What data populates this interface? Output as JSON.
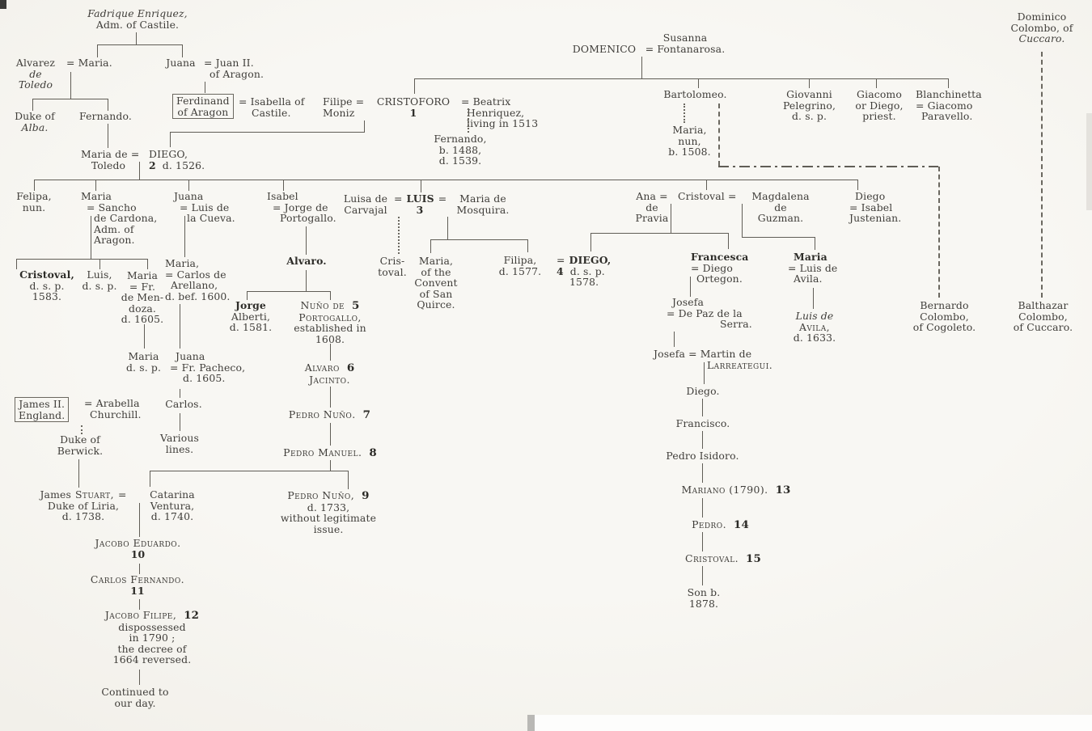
{
  "chart_title": "Genealogy of the Colombo (Columbus) family",
  "colors": {
    "paper": "#f6f5f1",
    "ink": "#3f3d39",
    "line": "#605d56"
  },
  "persons": {
    "fadrique": [
      [
        {
          "t": "Fadrique Enriquez,",
          "s": "i"
        }
      ],
      [
        {
          "t": "Adm. of Castile."
        }
      ]
    ],
    "alvarez": [
      [
        {
          "t": "Alvarez"
        }
      ],
      [
        {
          "t": "de",
          "s": "i"
        }
      ],
      [
        {
          "t": "Toledo",
          "s": "i"
        }
      ]
    ],
    "maria_w_alvarez": [
      [
        {
          "t": "= Maria."
        }
      ]
    ],
    "juana_w_juan": [
      [
        {
          "t": "Juana"
        }
      ]
    ],
    "juan2": [
      [
        {
          "t": "= Juan II."
        }
      ],
      [
        {
          "t": "of Aragon.",
          "s": "ind1"
        }
      ]
    ],
    "duke_alba": [
      [
        {
          "t": "Duke of"
        }
      ],
      [
        {
          "t": "Alba.",
          "s": "i"
        }
      ]
    ],
    "fernando_toledo": [
      [
        {
          "t": "Fernando."
        }
      ]
    ],
    "ferdinand": [
      [
        {
          "t": "Ferdinand"
        }
      ],
      [
        {
          "t": "of Aragon"
        }
      ]
    ],
    "isabella": [
      [
        {
          "t": "= Isabella of"
        }
      ],
      [
        {
          "t": "Castile.",
          "s": "ind2"
        }
      ]
    ],
    "filipe_moniz": [
      [
        {
          "t": "Filipe ="
        }
      ],
      [
        {
          "t": "Moniz"
        }
      ]
    ],
    "cristoforo": [
      [
        {
          "t": "CRISTOFORO"
        }
      ],
      [
        {
          "t": "1",
          "s": "b"
        }
      ]
    ],
    "beatrix": [
      [
        {
          "t": "= Beatrix"
        }
      ],
      [
        {
          "t": "Henriquez,",
          "s": "ind1"
        }
      ],
      [
        {
          "t": "living in 1513",
          "s": "ind1"
        }
      ]
    ],
    "domenico": [
      [
        {
          "t": "DOMENICO"
        }
      ]
    ],
    "susanna": [
      [
        {
          "t": "Susanna"
        }
      ],
      [
        {
          "t": "= Fontanarosa."
        }
      ]
    ],
    "dominico_cuccaro": [
      [
        {
          "t": "Dominico"
        }
      ],
      [
        {
          "t": "Colombo, of"
        }
      ],
      [
        {
          "t": "Cuccaro.",
          "s": "i"
        }
      ]
    ],
    "fernando_col": [
      [
        {
          "t": "Fernando,"
        }
      ],
      [
        {
          "t": "b. 1488,"
        }
      ],
      [
        {
          "t": "d. 1539."
        }
      ]
    ],
    "bartolomeo": [
      [
        {
          "t": "Bartolomeo."
        }
      ]
    ],
    "maria_nun": [
      [
        {
          "t": "Maria,"
        }
      ],
      [
        {
          "t": "nun,"
        }
      ],
      [
        {
          "t": "b. 1508."
        }
      ]
    ],
    "giovanni": [
      [
        {
          "t": "Giovanni"
        }
      ],
      [
        {
          "t": "Pelegrino,"
        }
      ],
      [
        {
          "t": "d. s. p."
        }
      ]
    ],
    "giacomo": [
      [
        {
          "t": "Giacomo"
        }
      ],
      [
        {
          "t": "or Diego,"
        }
      ],
      [
        {
          "t": "priest."
        }
      ]
    ],
    "blanchinetta": [
      [
        {
          "t": "Blanchinetta"
        }
      ],
      [
        {
          "t": "= Giacomo"
        }
      ],
      [
        {
          "t": "Paravello.",
          "s": "ind1"
        }
      ]
    ],
    "maria_toledo": [
      [
        {
          "t": "Maria de ="
        }
      ],
      [
        {
          "t": "Toledo"
        }
      ]
    ],
    "diego2": [
      [
        {
          "t": "DIEGO,"
        }
      ],
      [
        {
          "t": "2",
          "s": "b"
        },
        {
          "t": "d. 1526.",
          "s": "gap"
        }
      ]
    ],
    "felipa": [
      [
        {
          "t": "Felipa,"
        }
      ],
      [
        {
          "t": "nun."
        }
      ]
    ],
    "maria_sancho": [
      [
        {
          "t": "Maria"
        }
      ],
      [
        {
          "t": "= Sancho",
          "s": "ind1"
        }
      ],
      [
        {
          "t": "de Cardona,",
          "s": "ind2"
        }
      ],
      [
        {
          "t": "Adm. of",
          "s": "ind2"
        }
      ],
      [
        {
          "t": "Aragon.",
          "s": "ind2"
        }
      ]
    ],
    "juana_cueva": [
      [
        {
          "t": "Juana"
        }
      ],
      [
        {
          "t": "= Luis de",
          "s": "ind1"
        }
      ],
      [
        {
          "t": "la Cueva.",
          "s": "ind2"
        }
      ]
    ],
    "isabel_jorge": [
      [
        {
          "t": "Isabel"
        }
      ],
      [
        {
          "t": "= Jorge de",
          "s": "ind1"
        }
      ],
      [
        {
          "t": "Portogallo.",
          "s": "ind2"
        }
      ]
    ],
    "luisa_carvajal": [
      [
        {
          "t": "Luisa de"
        }
      ],
      [
        {
          "t": "Carvajal"
        }
      ]
    ],
    "luis3": [
      [
        {
          "t": "="
        },
        {
          "t": "LUIS",
          "s": "b gapS"
        },
        {
          "t": "=",
          "s": "gapS"
        }
      ],
      [
        {
          "t": "3",
          "s": "b"
        }
      ]
    ],
    "maria_mosquira": [
      [
        {
          "t": "Maria de"
        }
      ],
      [
        {
          "t": "Mosquira."
        }
      ]
    ],
    "ana_pravia": [
      [
        {
          "t": "Ana ="
        }
      ],
      [
        {
          "t": "de"
        }
      ],
      [
        {
          "t": "Pravia"
        }
      ]
    ],
    "cristoval2": [
      [
        {
          "t": "Cristoval ="
        }
      ]
    ],
    "magdalena": [
      [
        {
          "t": "Magdalena"
        }
      ],
      [
        {
          "t": "de"
        }
      ],
      [
        {
          "t": "Guzman."
        }
      ]
    ],
    "diego_justenian": [
      [
        {
          "t": "Diego",
          "s": "ind1"
        }
      ],
      [
        {
          "t": "= Isabel"
        }
      ],
      [
        {
          "t": "Justenian."
        }
      ]
    ],
    "cristoval_dsp": [
      [
        {
          "t": "Cristoval,",
          "s": "b"
        }
      ],
      [
        {
          "t": "d. s. p."
        }
      ],
      [
        {
          "t": "1583."
        }
      ]
    ],
    "luis_dsp": [
      [
        {
          "t": "Luis,"
        }
      ],
      [
        {
          "t": "d. s. p."
        }
      ]
    ],
    "maria_mendoza": [
      [
        {
          "t": "Maria"
        }
      ],
      [
        {
          "t": "= Fr."
        }
      ],
      [
        {
          "t": "de Men-"
        }
      ],
      [
        {
          "t": "doza."
        }
      ],
      [
        {
          "t": "d. 1605."
        }
      ]
    ],
    "maria_arellano": [
      [
        {
          "t": "Maria,"
        }
      ],
      [
        {
          "t": "= Carlos de"
        }
      ],
      [
        {
          "t": "Arellano,",
          "s": "ind1"
        }
      ],
      [
        {
          "t": "d. bef. 1600."
        }
      ]
    ],
    "alvaro_b": [
      [
        {
          "t": "Alvaro.",
          "s": "b"
        }
      ]
    ],
    "jorge_alberti": [
      [
        {
          "t": "Jorge",
          "s": "b"
        }
      ],
      [
        {
          "t": "Alberti,"
        }
      ],
      [
        {
          "t": "d. 1581."
        }
      ]
    ],
    "nuno5": [
      [
        {
          "t": "Nuño de",
          "s": "sc"
        },
        {
          "t": "5",
          "s": "num"
        }
      ],
      [
        {
          "t": "Portogallo,",
          "s": "sc"
        }
      ],
      [
        {
          "t": "established in"
        }
      ],
      [
        {
          "t": "1608."
        }
      ]
    ],
    "cristoval_ill": [
      [
        {
          "t": "Cris-"
        }
      ],
      [
        {
          "t": "toval."
        }
      ]
    ],
    "maria_convent": [
      [
        {
          "t": "Maria,"
        }
      ],
      [
        {
          "t": "of the"
        }
      ],
      [
        {
          "t": "Convent"
        }
      ],
      [
        {
          "t": "of San"
        }
      ],
      [
        {
          "t": "Quirce."
        }
      ]
    ],
    "filipa_d": [
      [
        {
          "t": "Filipa,"
        }
      ],
      [
        {
          "t": "d. 1577."
        }
      ]
    ],
    "diego4": [
      [
        {
          "t": "="
        },
        {
          "t": "DIEGO,",
          "s": "b gapS"
        }
      ],
      [
        {
          "t": "4",
          "s": "b"
        },
        {
          "t": "d. s. p.",
          "s": "gap"
        }
      ],
      [
        {
          "t": "1578.",
          "s": "ind2"
        }
      ]
    ],
    "francesca": [
      [
        {
          "t": "Francesca",
          "s": "b"
        }
      ],
      [
        {
          "t": "= Diego"
        }
      ],
      [
        {
          "t": "Ortegon.",
          "s": "ind1"
        }
      ]
    ],
    "maria_avila": [
      [
        {
          "t": "Maria",
          "s": "b ind1"
        }
      ],
      [
        {
          "t": "= Luis de"
        }
      ],
      [
        {
          "t": "Avila.",
          "s": "ind1"
        }
      ]
    ],
    "luis_avila": [
      [
        {
          "t": "Luis de",
          "s": "i"
        }
      ],
      [
        {
          "t": "Avila,",
          "s": "sc"
        }
      ],
      [
        {
          "t": "d. 1633."
        }
      ]
    ],
    "josefa1": [
      [
        {
          "t": "Josefa",
          "s": "ind1"
        }
      ],
      [
        {
          "t": "= De Paz de la"
        }
      ],
      [
        {
          "t": "Serra.",
          "s": "ind3"
        }
      ]
    ],
    "josefa2": [
      [
        {
          "t": "Josefa = Martin de"
        }
      ],
      [
        {
          "t": "Larreategui.",
          "s": "sc ind3"
        }
      ]
    ],
    "diego_ch": [
      [
        {
          "t": "Diego."
        }
      ]
    ],
    "francisco": [
      [
        {
          "t": "Francisco."
        }
      ]
    ],
    "pedro_isidoro": [
      [
        {
          "t": "Pedro Isidoro."
        }
      ]
    ],
    "mariano13": [
      [
        {
          "t": "Mariano (1790).",
          "s": "sc"
        },
        {
          "t": "13",
          "s": "num"
        }
      ]
    ],
    "pedro14": [
      [
        {
          "t": "Pedro.",
          "s": "sc"
        },
        {
          "t": "14",
          "s": "num"
        }
      ]
    ],
    "cristoval15": [
      [
        {
          "t": "Cristoval.",
          "s": "sc"
        },
        {
          "t": "15",
          "s": "num"
        }
      ]
    ],
    "son1878": [
      [
        {
          "t": "Son b."
        }
      ],
      [
        {
          "t": "1878."
        }
      ]
    ],
    "bernardo": [
      [
        {
          "t": "Bernardo"
        }
      ],
      [
        {
          "t": "Colombo,"
        }
      ],
      [
        {
          "t": "of Cogoleto."
        }
      ]
    ],
    "balthazar": [
      [
        {
          "t": "Balthazar"
        }
      ],
      [
        {
          "t": "Colombo,"
        }
      ],
      [
        {
          "t": "of Cuccaro."
        }
      ]
    ],
    "maria_dsp2": [
      [
        {
          "t": "Maria"
        }
      ],
      [
        {
          "t": "d. s. p."
        }
      ]
    ],
    "juana_pacheco": [
      [
        {
          "t": "Juana",
          "s": "ind1"
        }
      ],
      [
        {
          "t": "= Fr. Pacheco,"
        }
      ],
      [
        {
          "t": "d. 1605.",
          "s": "ind2"
        }
      ]
    ],
    "carlos_ch": [
      [
        {
          "t": "Carlos."
        }
      ]
    ],
    "various": [
      [
        {
          "t": "Various"
        }
      ],
      [
        {
          "t": "lines."
        }
      ]
    ],
    "james2": [
      [
        {
          "t": "James II."
        }
      ],
      [
        {
          "t": "England."
        }
      ]
    ],
    "arabella": [
      [
        {
          "t": "= Arabella"
        }
      ],
      [
        {
          "t": "Churchill.",
          "s": "ind1"
        }
      ]
    ],
    "duke_berwick": [
      [
        {
          "t": "Duke of"
        }
      ],
      [
        {
          "t": "Berwick."
        }
      ]
    ],
    "james_stuart": [
      [
        {
          "t": "James"
        },
        {
          "t": "Stuart,",
          "s": "sc gapS"
        },
        {
          "t": "=",
          "s": "gapS"
        }
      ],
      [
        {
          "t": "Duke of Liria,"
        }
      ],
      [
        {
          "t": "d. 1738."
        }
      ]
    ],
    "catarina": [
      [
        {
          "t": "Catarina"
        }
      ],
      [
        {
          "t": "Ventura,"
        }
      ],
      [
        {
          "t": "d. 1740."
        }
      ]
    ],
    "jacobo_eduardo": [
      [
        {
          "t": "Jacobo Eduardo.",
          "s": "sc"
        }
      ],
      [
        {
          "t": "10",
          "s": "b"
        }
      ]
    ],
    "carlos_fernando": [
      [
        {
          "t": "Carlos Fernando.",
          "s": "sc"
        }
      ],
      [
        {
          "t": "11",
          "s": "b"
        }
      ]
    ],
    "jacobo_filipe": [
      [
        {
          "t": "Jacobo Filipe,",
          "s": "sc"
        },
        {
          "t": "12",
          "s": "num"
        }
      ],
      [
        {
          "t": "dispossessed"
        }
      ],
      [
        {
          "t": "in 1790 ;"
        }
      ],
      [
        {
          "t": "the decree of"
        }
      ],
      [
        {
          "t": "1664 reversed."
        }
      ]
    ],
    "continued": [
      [
        {
          "t": "Continued to"
        }
      ],
      [
        {
          "t": "our day."
        }
      ]
    ],
    "alvaro6": [
      [
        {
          "t": "Alvaro",
          "s": "sc"
        },
        {
          "t": "6",
          "s": "num"
        }
      ],
      [
        {
          "t": "Jacinto.",
          "s": "sc"
        }
      ]
    ],
    "pedro_nuno7": [
      [
        {
          "t": "Pedro Nuño.",
          "s": "sc"
        },
        {
          "t": "7",
          "s": "num"
        }
      ]
    ],
    "pedro_manuel8": [
      [
        {
          "t": "Pedro Manuel.",
          "s": "sc"
        },
        {
          "t": "8",
          "s": "num"
        }
      ]
    ],
    "pedro_nuno9": [
      [
        {
          "t": "Pedro Nuño,",
          "s": "sc"
        },
        {
          "t": "9",
          "s": "num"
        }
      ],
      [
        {
          "t": "d. 1733,"
        }
      ],
      [
        {
          "t": "without legitimate"
        }
      ],
      [
        {
          "t": "issue."
        }
      ]
    ]
  }
}
